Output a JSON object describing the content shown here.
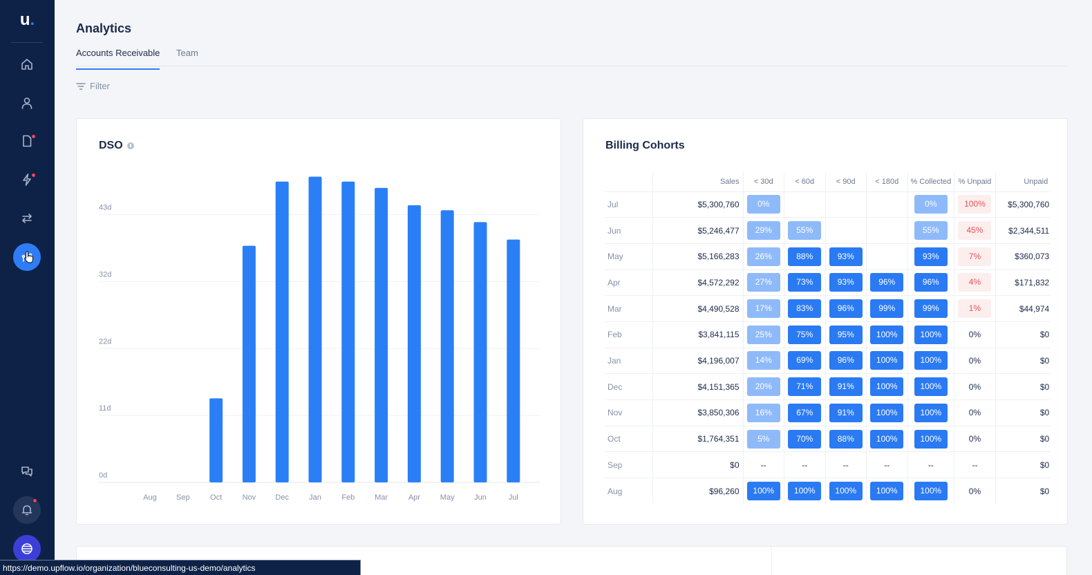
{
  "app": {
    "logo_letter": "u",
    "logo_dot": "."
  },
  "sidebar": {
    "items": [
      {
        "icon": "home-icon"
      },
      {
        "icon": "person-icon"
      },
      {
        "icon": "document-icon",
        "badge": true
      },
      {
        "icon": "lightning-icon",
        "badge": true
      },
      {
        "icon": "swap-arrows-icon"
      },
      {
        "icon": "analytics-icon",
        "active": true
      },
      {
        "icon": "chat-icon"
      },
      {
        "icon": "bell-icon",
        "badge": true
      },
      {
        "icon": "globe-icon"
      }
    ]
  },
  "header": {
    "title": "Analytics",
    "tabs": [
      {
        "label": "Accounts Receivable",
        "active": true
      },
      {
        "label": "Team",
        "active": false
      }
    ],
    "filter_label": "Filter"
  },
  "dso": {
    "title": "DSO"
  },
  "chart_data": {
    "type": "bar",
    "title": "DSO",
    "categories": [
      "Aug",
      "Sep",
      "Oct",
      "Nov",
      "Dec",
      "Jan",
      "Feb",
      "Mar",
      "Apr",
      "May",
      "Jun",
      "Jul"
    ],
    "values": [
      0,
      0,
      13.5,
      38,
      48.3,
      49.1,
      48.3,
      47.3,
      44.5,
      43.7,
      41.8,
      39
    ],
    "y_ticks": [
      "0d",
      "11d",
      "22d",
      "32d",
      "43d"
    ],
    "y_tick_values": [
      0,
      10.75,
      21.5,
      32.25,
      43
    ],
    "ylim": [
      0,
      49.5
    ],
    "grid": true,
    "color": "#2a7ff6"
  },
  "cohorts": {
    "title": "Billing Cohorts",
    "columns": [
      "Sales",
      "< 30d",
      "< 60d",
      "< 90d",
      "< 180d",
      "% Collected",
      "% Unpaid",
      "Unpaid"
    ],
    "rows": [
      {
        "month": "Jul",
        "sales": "$5,300,760",
        "d30": {
          "v": "0%",
          "s": "light"
        },
        "d60": {
          "v": "",
          "s": ""
        },
        "d90": {
          "v": "",
          "s": ""
        },
        "d180": {
          "v": "",
          "s": ""
        },
        "collected": {
          "v": "0%",
          "s": "light"
        },
        "unpaid_pct": {
          "v": "100%",
          "s": "red"
        },
        "unpaid": "$5,300,760"
      },
      {
        "month": "Jun",
        "sales": "$5,246,477",
        "d30": {
          "v": "29%",
          "s": "light"
        },
        "d60": {
          "v": "55%",
          "s": "light"
        },
        "d90": {
          "v": "",
          "s": ""
        },
        "d180": {
          "v": "",
          "s": ""
        },
        "collected": {
          "v": "55%",
          "s": "light"
        },
        "unpaid_pct": {
          "v": "45%",
          "s": "red"
        },
        "unpaid": "$2,344,511"
      },
      {
        "month": "May",
        "sales": "$5,166,283",
        "d30": {
          "v": "26%",
          "s": "light"
        },
        "d60": {
          "v": "88%",
          "s": "dark"
        },
        "d90": {
          "v": "93%",
          "s": "dark"
        },
        "d180": {
          "v": "",
          "s": ""
        },
        "collected": {
          "v": "93%",
          "s": "dark"
        },
        "unpaid_pct": {
          "v": "7%",
          "s": "red"
        },
        "unpaid": "$360,073"
      },
      {
        "month": "Apr",
        "sales": "$4,572,292",
        "d30": {
          "v": "27%",
          "s": "light"
        },
        "d60": {
          "v": "73%",
          "s": "dark"
        },
        "d90": {
          "v": "93%",
          "s": "dark"
        },
        "d180": {
          "v": "96%",
          "s": "dark"
        },
        "collected": {
          "v": "96%",
          "s": "dark"
        },
        "unpaid_pct": {
          "v": "4%",
          "s": "red"
        },
        "unpaid": "$171,832"
      },
      {
        "month": "Mar",
        "sales": "$4,490,528",
        "d30": {
          "v": "17%",
          "s": "light"
        },
        "d60": {
          "v": "83%",
          "s": "dark"
        },
        "d90": {
          "v": "96%",
          "s": "dark"
        },
        "d180": {
          "v": "99%",
          "s": "dark"
        },
        "collected": {
          "v": "99%",
          "s": "dark"
        },
        "unpaid_pct": {
          "v": "1%",
          "s": "red"
        },
        "unpaid": "$44,974"
      },
      {
        "month": "Feb",
        "sales": "$3,841,115",
        "d30": {
          "v": "25%",
          "s": "light"
        },
        "d60": {
          "v": "75%",
          "s": "dark"
        },
        "d90": {
          "v": "95%",
          "s": "dark"
        },
        "d180": {
          "v": "100%",
          "s": "dark"
        },
        "collected": {
          "v": "100%",
          "s": "dark"
        },
        "unpaid_pct": {
          "v": "0%",
          "s": "plain"
        },
        "unpaid": "$0"
      },
      {
        "month": "Jan",
        "sales": "$4,196,007",
        "d30": {
          "v": "14%",
          "s": "light"
        },
        "d60": {
          "v": "69%",
          "s": "dark"
        },
        "d90": {
          "v": "96%",
          "s": "dark"
        },
        "d180": {
          "v": "100%",
          "s": "dark"
        },
        "collected": {
          "v": "100%",
          "s": "dark"
        },
        "unpaid_pct": {
          "v": "0%",
          "s": "plain"
        },
        "unpaid": "$0"
      },
      {
        "month": "Dec",
        "sales": "$4,151,365",
        "d30": {
          "v": "20%",
          "s": "light"
        },
        "d60": {
          "v": "71%",
          "s": "dark"
        },
        "d90": {
          "v": "91%",
          "s": "dark"
        },
        "d180": {
          "v": "100%",
          "s": "dark"
        },
        "collected": {
          "v": "100%",
          "s": "dark"
        },
        "unpaid_pct": {
          "v": "0%",
          "s": "plain"
        },
        "unpaid": "$0"
      },
      {
        "month": "Nov",
        "sales": "$3,850,306",
        "d30": {
          "v": "16%",
          "s": "light"
        },
        "d60": {
          "v": "67%",
          "s": "dark"
        },
        "d90": {
          "v": "91%",
          "s": "dark"
        },
        "d180": {
          "v": "100%",
          "s": "dark"
        },
        "collected": {
          "v": "100%",
          "s": "dark"
        },
        "unpaid_pct": {
          "v": "0%",
          "s": "plain"
        },
        "unpaid": "$0"
      },
      {
        "month": "Oct",
        "sales": "$1,764,351",
        "d30": {
          "v": "5%",
          "s": "light"
        },
        "d60": {
          "v": "70%",
          "s": "dark"
        },
        "d90": {
          "v": "88%",
          "s": "dark"
        },
        "d180": {
          "v": "100%",
          "s": "dark"
        },
        "collected": {
          "v": "100%",
          "s": "dark"
        },
        "unpaid_pct": {
          "v": "0%",
          "s": "plain"
        },
        "unpaid": "$0"
      },
      {
        "month": "Sep",
        "sales": "$0",
        "d30": {
          "v": "--",
          "s": "plain"
        },
        "d60": {
          "v": "--",
          "s": "plain"
        },
        "d90": {
          "v": "--",
          "s": "plain"
        },
        "d180": {
          "v": "--",
          "s": "plain"
        },
        "collected": {
          "v": "--",
          "s": "plain"
        },
        "unpaid_pct": {
          "v": "--",
          "s": "plain"
        },
        "unpaid": "$0"
      },
      {
        "month": "Aug",
        "sales": "$96,260",
        "d30": {
          "v": "100%",
          "s": "dark"
        },
        "d60": {
          "v": "100%",
          "s": "dark"
        },
        "d90": {
          "v": "100%",
          "s": "dark"
        },
        "d180": {
          "v": "100%",
          "s": "dark"
        },
        "collected": {
          "v": "100%",
          "s": "dark"
        },
        "unpaid_pct": {
          "v": "0%",
          "s": "plain"
        },
        "unpaid": "$0"
      }
    ]
  },
  "statusbar": {
    "url": "https://demo.upflow.io/organization/blueconsulting-us-demo/analytics"
  }
}
